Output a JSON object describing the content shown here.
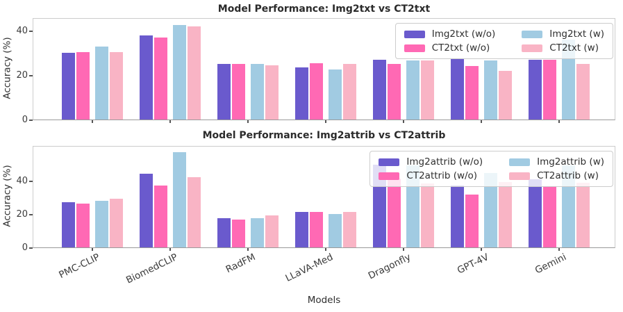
{
  "figure": {
    "background": "#ffffff",
    "xlabel": "Models"
  },
  "colors": {
    "series": [
      "#6A5ACD",
      "#FF69B4",
      "#A1CBE2",
      "#F9B4C5"
    ],
    "spine": "#cccccc",
    "tick_text": "#3a3a3a",
    "title_text": "#2b2b2b",
    "legend_border": "#cccccc"
  },
  "chart_data": [
    {
      "type": "bar",
      "title": "Model Performance: Img2txt vs CT2txt",
      "xlabel": "",
      "ylabel": "Accuracy (%)",
      "categories": [
        "PMC-CLIP",
        "BiomedCLIP",
        "RadFM",
        "LLaVA-Med",
        "Dragonfly",
        "GPT-4V",
        "Gemini"
      ],
      "series": [
        {
          "name": "Img2txt (w/o)",
          "color": "#6A5ACD",
          "values": [
            30,
            38,
            25,
            23.5,
            27,
            27.5,
            27
          ]
        },
        {
          "name": "CT2txt (w/o)",
          "color": "#FF69B4",
          "values": [
            30.5,
            37,
            25,
            25.5,
            25,
            24,
            27
          ]
        },
        {
          "name": "Img2txt (w)",
          "color": "#A1CBE2",
          "values": [
            33,
            42.5,
            25,
            22.5,
            26.5,
            26.5,
            36
          ]
        },
        {
          "name": "CT2txt (w)",
          "color": "#F9B4C5",
          "values": [
            30.5,
            42,
            24.5,
            25,
            26.5,
            22,
            25
          ]
        }
      ],
      "ylim": [
        0,
        46
      ],
      "yticks": [
        0,
        20,
        40
      ],
      "grid": false,
      "legend_position": "upper right"
    },
    {
      "type": "bar",
      "title": "Model Performance: Img2attrib vs CT2attrib",
      "xlabel": "Models",
      "ylabel": "Accuracy (%)",
      "categories": [
        "PMC-CLIP",
        "BiomedCLIP",
        "RadFM",
        "LLaVA-Med",
        "Dragonfly",
        "GPT-4V",
        "Gemini"
      ],
      "series": [
        {
          "name": "Img2attrib (w/o)",
          "color": "#6A5ACD",
          "values": [
            27,
            44,
            17.5,
            21,
            49.5,
            37,
            40.5
          ]
        },
        {
          "name": "CT2attrib (w/o)",
          "color": "#FF69B4",
          "values": [
            26,
            37,
            16.5,
            21,
            41,
            31.5,
            36.5
          ]
        },
        {
          "name": "Img2attrib (w)",
          "color": "#A1CBE2",
          "values": [
            28,
            57,
            17.5,
            20,
            49,
            44.5,
            49
          ]
        },
        {
          "name": "CT2attrib (w)",
          "color": "#F9B4C5",
          "values": [
            29,
            42,
            19,
            21,
            38,
            39,
            38.5
          ]
        }
      ],
      "ylim": [
        0,
        61
      ],
      "yticks": [
        0,
        20,
        40
      ],
      "grid": false,
      "legend_position": "upper right"
    }
  ]
}
